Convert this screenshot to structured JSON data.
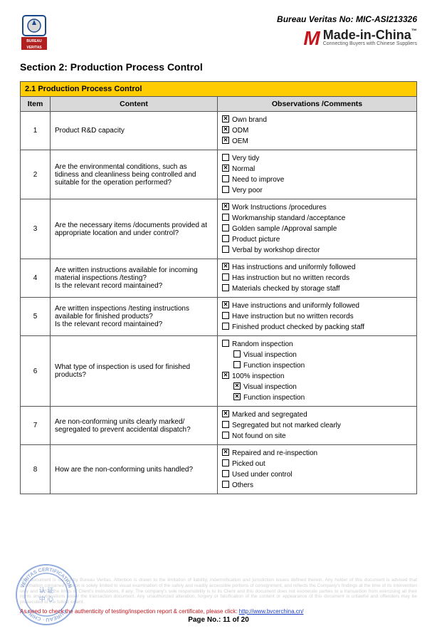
{
  "header": {
    "bv_no_label": "Bureau Veritas No: ",
    "bv_no_value": "MIC-ASI213326",
    "mic_brand": "Made-in-China",
    "mic_tagline": "Connecting Buyers with Chinese Suppliers"
  },
  "section_title": "Section 2: Production Process Control",
  "table": {
    "banner": "2.1 Production Process Control",
    "col_item": "Item",
    "col_content": "Content",
    "col_obs": "Observations /Comments",
    "rows": [
      {
        "item": "1",
        "content": "Product R&D capacity",
        "options": [
          {
            "label": "Own brand",
            "checked": true
          },
          {
            "label": "ODM",
            "checked": true
          },
          {
            "label": "OEM",
            "checked": true
          }
        ]
      },
      {
        "item": "2",
        "content": "Are the environmental conditions, such as tidiness and cleanliness being controlled and suitable for the operation performed?",
        "options": [
          {
            "label": "Very tidy",
            "checked": false
          },
          {
            "label": "Normal",
            "checked": true
          },
          {
            "label": "Need to improve",
            "checked": false
          },
          {
            "label": "Very poor",
            "checked": false
          }
        ]
      },
      {
        "item": "3",
        "content": "Are the necessary items /documents provided at appropriate location and under control?",
        "options": [
          {
            "label": "Work Instructions /procedures",
            "checked": true
          },
          {
            "label": "Workmanship standard /acceptance",
            "checked": false
          },
          {
            "label": "Golden sample /Approval sample",
            "checked": false
          },
          {
            "label": "Product picture",
            "checked": false
          },
          {
            "label": "Verbal by workshop director",
            "checked": false
          }
        ]
      },
      {
        "item": "4",
        "content": "Are written instructions available for incoming material inspections /testing?\nIs the relevant record maintained?",
        "options": [
          {
            "label": "Has instructions and uniformly followed",
            "checked": true
          },
          {
            "label": "Has instruction but no written records",
            "checked": false
          },
          {
            "label": "Materials checked by storage staff",
            "checked": false
          }
        ]
      },
      {
        "item": "5",
        "content": "Are written inspections /testing instructions available for finished products?\nIs the relevant record maintained?",
        "options": [
          {
            "label": "Have instructions and uniformly followed",
            "checked": true
          },
          {
            "label": "Have instruction but no written records",
            "checked": false
          },
          {
            "label": "Finished product checked by packing staff",
            "checked": false
          }
        ]
      },
      {
        "item": "6",
        "content": "What type of inspection is used for finished products?",
        "options": [
          {
            "label": "Random inspection",
            "checked": false
          },
          {
            "label": "Visual inspection",
            "checked": false,
            "indent": true
          },
          {
            "label": "Function inspection",
            "checked": false,
            "indent": true
          },
          {
            "label": "100% inspection",
            "checked": true
          },
          {
            "label": "Visual inspection",
            "checked": true,
            "indent": true
          },
          {
            "label": "Function inspection",
            "checked": true,
            "indent": true
          }
        ]
      },
      {
        "item": "7",
        "content": "Are non-conforming units clearly marked/ segregated to prevent accidental dispatch?",
        "options": [
          {
            "label": "Marked and segregated",
            "checked": true
          },
          {
            "label": "Segregated but not marked clearly",
            "checked": false
          },
          {
            "label": "Not found on site",
            "checked": false
          }
        ]
      },
      {
        "item": "8",
        "content": "How are the non-conforming units handled?",
        "options": [
          {
            "label": "Repaired and re-inspection",
            "checked": true
          },
          {
            "label": "Picked out",
            "checked": false
          },
          {
            "label": "Used under control",
            "checked": false
          },
          {
            "label": "Others",
            "checked": false
          }
        ]
      }
    ]
  },
  "footer": {
    "disclaimer": "This document is issued by Bureau Veritas. Attention is drawn to the limitation of liability, indemnification and jurisdiction issues defined therein. Any holder of this document is advised that information contained hereon is solely limited to visual examination of the safely and readily accessible portions of consignment, and reflects the Company's findings at the time of its intervention only and within the limits of Client's instructions, if any. The company's sole responsibility is to its Client and this document does not exonerate parties to a transaction from exercising all their rights and obligations under the transaction document. Any unauthorized alteration, forgery or falsification of the content or appearance of this document is unlawful and offenders may be prosecuted to the fullest extent.",
    "auth_prefix": "As need to check the authenticity of testing/inspection report & certificate, please click: ",
    "auth_url": "http://www.bvcerchina.cn/",
    "page_no": "Page No.: 11 of 20"
  }
}
